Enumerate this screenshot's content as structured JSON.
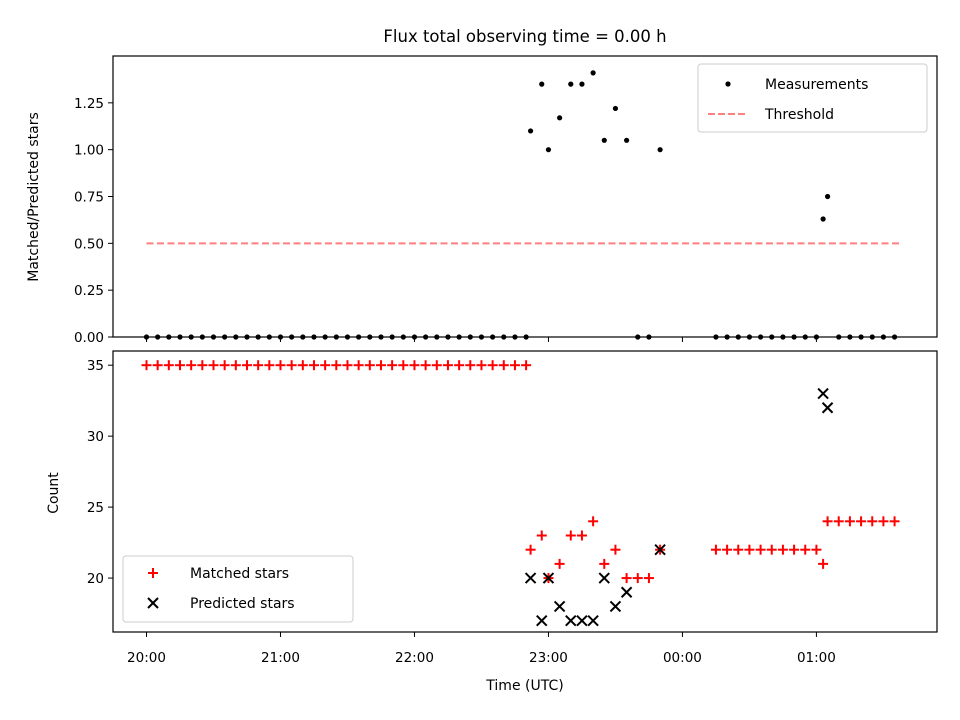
{
  "chart_data": [
    {
      "type": "scatter",
      "title": "Flux total observing time = 0.00 h",
      "xlabel": "",
      "ylabel": "Matched/Predicted stars",
      "ylim": [
        0,
        1.5
      ],
      "yticks": [
        "0.00",
        "0.25",
        "0.50",
        "0.75",
        "1.00",
        "1.25"
      ],
      "xticks": [
        "20:00",
        "21:00",
        "22:00",
        "23:00",
        "00:00",
        "01:00"
      ],
      "xlim_hours": [
        19.75,
        25.9
      ],
      "legend_position": "top-right",
      "series": [
        {
          "name": "Measurements",
          "kind": "scatter",
          "color": "#000000",
          "x": [
            "20:00",
            "20:05",
            "20:10",
            "20:15",
            "20:20",
            "20:25",
            "20:30",
            "20:35",
            "20:40",
            "20:45",
            "20:50",
            "20:55",
            "21:00",
            "21:05",
            "21:10",
            "21:15",
            "21:20",
            "21:25",
            "21:30",
            "21:35",
            "21:40",
            "21:45",
            "21:50",
            "21:55",
            "22:00",
            "22:05",
            "22:10",
            "22:15",
            "22:20",
            "22:25",
            "22:30",
            "22:35",
            "22:40",
            "22:45",
            "22:50",
            "22:52",
            "22:57",
            "23:00",
            "23:05",
            "23:10",
            "23:15",
            "23:20",
            "23:25",
            "23:30",
            "23:35",
            "23:40",
            "23:45",
            "23:50",
            "00:15",
            "00:20",
            "00:25",
            "00:30",
            "00:35",
            "00:40",
            "00:45",
            "00:50",
            "00:55",
            "01:00",
            "01:03",
            "01:05",
            "01:10",
            "01:15",
            "01:20",
            "01:25",
            "01:30",
            "01:35"
          ],
          "y": [
            0,
            0,
            0,
            0,
            0,
            0,
            0,
            0,
            0,
            0,
            0,
            0,
            0,
            0,
            0,
            0,
            0,
            0,
            0,
            0,
            0,
            0,
            0,
            0,
            0,
            0,
            0,
            0,
            0,
            0,
            0,
            0,
            0,
            0,
            0,
            1.1,
            1.35,
            1.0,
            1.17,
            1.35,
            1.35,
            1.41,
            1.05,
            1.22,
            1.05,
            0,
            0,
            1.0,
            0,
            0,
            0,
            0,
            0,
            0,
            0,
            0,
            0,
            0,
            0.63,
            0.75,
            0,
            0,
            0,
            0,
            0,
            0
          ]
        },
        {
          "name": "Threshold",
          "kind": "line",
          "style": "dashed",
          "color": "#ff7f7f",
          "x": [
            "20:00",
            "01:37"
          ],
          "y": [
            0.5,
            0.5
          ]
        }
      ]
    },
    {
      "type": "scatter",
      "title": "",
      "xlabel": "Time (UTC)",
      "ylabel": "Count",
      "ylim": [
        16.2,
        36
      ],
      "yticks": [
        "20",
        "25",
        "30",
        "35"
      ],
      "xticks": [
        "20:00",
        "21:00",
        "22:00",
        "23:00",
        "00:00",
        "01:00"
      ],
      "xlim_hours": [
        19.75,
        25.9
      ],
      "legend_position": "bottom-left",
      "series": [
        {
          "name": "Matched stars",
          "marker": "plus",
          "color": "#ff0000",
          "x": [
            "20:00",
            "20:05",
            "20:10",
            "20:15",
            "20:20",
            "20:25",
            "20:30",
            "20:35",
            "20:40",
            "20:45",
            "20:50",
            "20:55",
            "21:00",
            "21:05",
            "21:10",
            "21:15",
            "21:20",
            "21:25",
            "21:30",
            "21:35",
            "21:40",
            "21:45",
            "21:50",
            "21:55",
            "22:00",
            "22:05",
            "22:10",
            "22:15",
            "22:20",
            "22:25",
            "22:30",
            "22:35",
            "22:40",
            "22:45",
            "22:50",
            "22:52",
            "22:57",
            "23:00",
            "23:05",
            "23:10",
            "23:15",
            "23:20",
            "23:25",
            "23:30",
            "23:35",
            "23:40",
            "23:45",
            "23:50",
            "00:15",
            "00:20",
            "00:25",
            "00:30",
            "00:35",
            "00:40",
            "00:45",
            "00:50",
            "00:55",
            "01:00",
            "01:03",
            "01:05",
            "01:10",
            "01:15",
            "01:20",
            "01:25",
            "01:30",
            "01:35"
          ],
          "y": [
            35,
            35,
            35,
            35,
            35,
            35,
            35,
            35,
            35,
            35,
            35,
            35,
            35,
            35,
            35,
            35,
            35,
            35,
            35,
            35,
            35,
            35,
            35,
            35,
            35,
            35,
            35,
            35,
            35,
            35,
            35,
            35,
            35,
            35,
            35,
            22,
            23,
            20,
            21,
            23,
            23,
            24,
            21,
            22,
            20,
            20,
            20,
            22,
            22,
            22,
            22,
            22,
            22,
            22,
            22,
            22,
            22,
            22,
            21,
            24,
            24,
            24,
            24,
            24,
            24,
            24
          ]
        },
        {
          "name": "Predicted stars",
          "marker": "x",
          "color": "#000000",
          "x": [
            "22:52",
            "22:57",
            "23:00",
            "23:05",
            "23:10",
            "23:15",
            "23:20",
            "23:25",
            "23:30",
            "23:35",
            "23:50",
            "01:03",
            "01:05"
          ],
          "y": [
            20,
            17,
            20,
            18,
            17,
            17,
            17,
            20,
            18,
            19,
            22,
            33,
            32
          ]
        }
      ]
    }
  ]
}
